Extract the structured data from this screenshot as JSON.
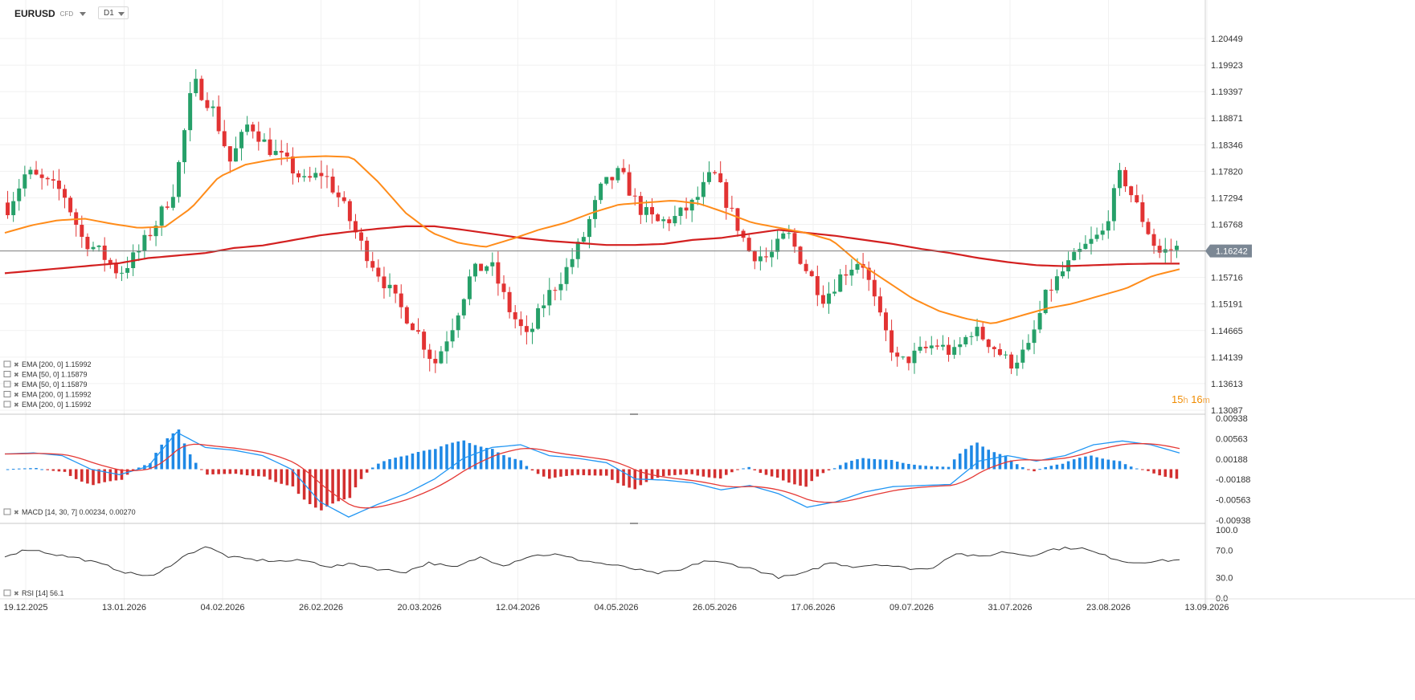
{
  "header": {
    "symbol": "EURUSD",
    "instrument_type": "CFD",
    "timeframe": "D1"
  },
  "countdown": {
    "hours": "15",
    "h_unit": "h",
    "minutes": "16",
    "m_unit": "m"
  },
  "colors": {
    "bull": "#26a069",
    "bear": "#e23333",
    "ema200": "#d32020",
    "ema50": "#ff8c1a",
    "macd_line": "#2196f3",
    "signal_line": "#e53935",
    "hist_pos": "#1e88e5",
    "hist_neg": "#d32f2f",
    "rsi": "#333333",
    "price_tag_bg": "#7b8794"
  },
  "legend": {
    "main": [
      {
        "text": "EMA [200, 0] 1.15992"
      },
      {
        "text": "EMA [50, 0] 1.15879"
      },
      {
        "text": "EMA [50, 0] 1.15879"
      },
      {
        "text": "EMA [200, 0] 1.15992"
      },
      {
        "text": "EMA [200, 0] 1.15992"
      }
    ],
    "macd": "MACD [14, 30, 7] 0.00234, 0.00270",
    "rsi": "RSI [14] 56.1"
  },
  "chart_data": {
    "type": "candlestick",
    "symbol": "EURUSD",
    "price_axis": {
      "ticks": [
        "1.20449",
        "1.19923",
        "1.19397",
        "1.18871",
        "1.18346",
        "1.17820",
        "1.17294",
        "1.16768",
        "1.16242",
        "1.15716",
        "1.15191",
        "1.14665",
        "1.14139",
        "1.13613",
        "1.13087"
      ],
      "ylim": [
        1.13087,
        1.20449
      ],
      "current_price": "1.16242"
    },
    "x_axis": {
      "tick_labels": [
        "19.12.2025",
        "13.01.2026",
        "04.02.2026",
        "26.02.2026",
        "20.03.2026",
        "12.04.2026",
        "04.05.2026",
        "26.05.2026",
        "17.06.2026",
        "09.07.2026",
        "31.07.2026",
        "23.08.2026",
        "13.09.2026"
      ]
    },
    "series_keypoints": {
      "close": [
        1.171,
        1.178,
        1.176,
        1.174,
        1.165,
        1.162,
        1.158,
        1.162,
        1.168,
        1.175,
        1.196,
        1.191,
        1.18,
        1.188,
        1.183,
        1.18,
        1.176,
        1.178,
        1.172,
        1.164,
        1.158,
        1.152,
        1.147,
        1.14,
        1.148,
        1.158,
        1.16,
        1.151,
        1.145,
        1.153,
        1.158,
        1.165,
        1.175,
        1.178,
        1.171,
        1.168,
        1.169,
        1.172,
        1.178,
        1.17,
        1.162,
        1.161,
        1.166,
        1.159,
        1.153,
        1.158,
        1.161,
        1.149,
        1.14,
        1.142,
        1.144,
        1.142,
        1.147,
        1.144,
        1.14,
        1.143,
        1.154,
        1.159,
        1.163,
        1.166,
        1.178,
        1.17,
        1.162,
        1.163
      ],
      "ema200": [
        1.158,
        1.1585,
        1.159,
        1.1595,
        1.16,
        1.161,
        1.1615,
        1.162,
        1.163,
        1.1635,
        1.1645,
        1.1655,
        1.1662,
        1.1668,
        1.1673,
        1.1673,
        1.1666,
        1.1658,
        1.165,
        1.1644,
        1.164,
        1.1636,
        1.1636,
        1.1638,
        1.1646,
        1.165,
        1.1658,
        1.1666,
        1.166,
        1.1654,
        1.1646,
        1.1638,
        1.1628,
        1.162,
        1.161,
        1.1602,
        1.1596,
        1.1594,
        1.1596,
        1.1598,
        1.1599,
        1.1599
      ],
      "ema50": [
        1.166,
        1.1675,
        1.1685,
        1.1688,
        1.1678,
        1.167,
        1.1672,
        1.171,
        1.177,
        1.1795,
        1.1805,
        1.181,
        1.1812,
        1.181,
        1.176,
        1.17,
        1.166,
        1.164,
        1.1632,
        1.1648,
        1.1666,
        1.168,
        1.17,
        1.1716,
        1.172,
        1.1724,
        1.1718,
        1.17,
        1.168,
        1.167,
        1.166,
        1.1645,
        1.16,
        1.1565,
        1.153,
        1.1505,
        1.149,
        1.148,
        1.1495,
        1.151,
        1.152,
        1.1535,
        1.155,
        1.1575,
        1.1588
      ],
      "macd_ylim": [
        -0.00938,
        0.00938
      ],
      "macd_ticks": [
        "0.00938",
        "0.00563",
        "0.00188",
        "-0.00188",
        "-0.00563",
        "-0.00938"
      ],
      "rsi_ticks": [
        "100.0",
        "70.0",
        "30.0",
        "0.0"
      ],
      "rsi_last": 56.1
    }
  }
}
